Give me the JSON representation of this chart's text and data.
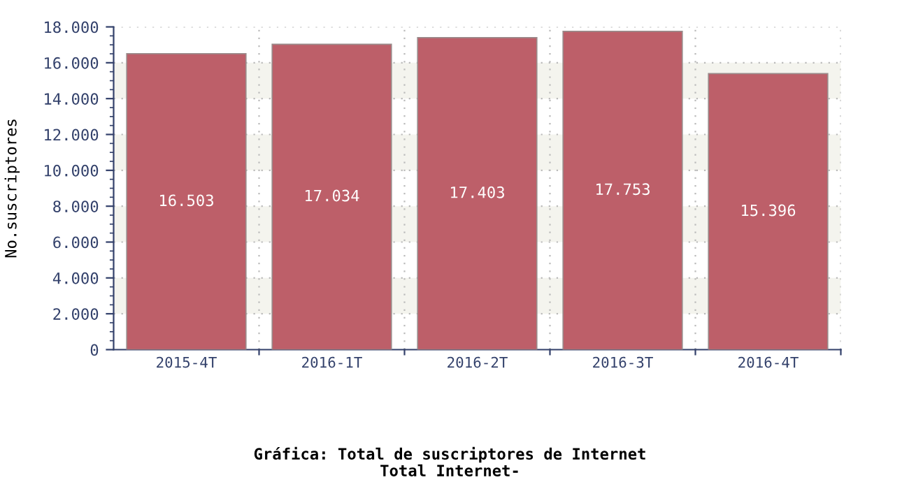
{
  "chart_data": {
    "type": "bar",
    "title": "Gráfica: Total de suscriptores de Internet",
    "subtitle": "Total Internet-",
    "ylabel": "No.suscriptores",
    "categories": [
      "2015-4T",
      "2016-1T",
      "2016-2T",
      "2016-3T",
      "2016-4T"
    ],
    "values": [
      16503,
      17034,
      17403,
      17753,
      15396
    ],
    "value_labels": [
      "16.503",
      "17.034",
      "17.403",
      "17.753",
      "15.396"
    ],
    "color": "#bd5f69",
    "ylim": [
      0,
      18000
    ],
    "yticks": [
      0,
      {
        "value": 2000,
        "label": "2.000"
      },
      {
        "value": 4000,
        "label": "4.000"
      },
      {
        "value": 6000,
        "label": "6.000"
      },
      {
        "value": 8000,
        "label": "8.000"
      },
      {
        "value": 10000,
        "label": "10.000"
      },
      {
        "value": 12000,
        "label": "12.000"
      },
      {
        "value": 14000,
        "label": "14.000"
      },
      {
        "value": 16000,
        "label": "16.000"
      },
      {
        "value": 18000,
        "label": "18.000"
      }
    ],
    "grid": true
  }
}
